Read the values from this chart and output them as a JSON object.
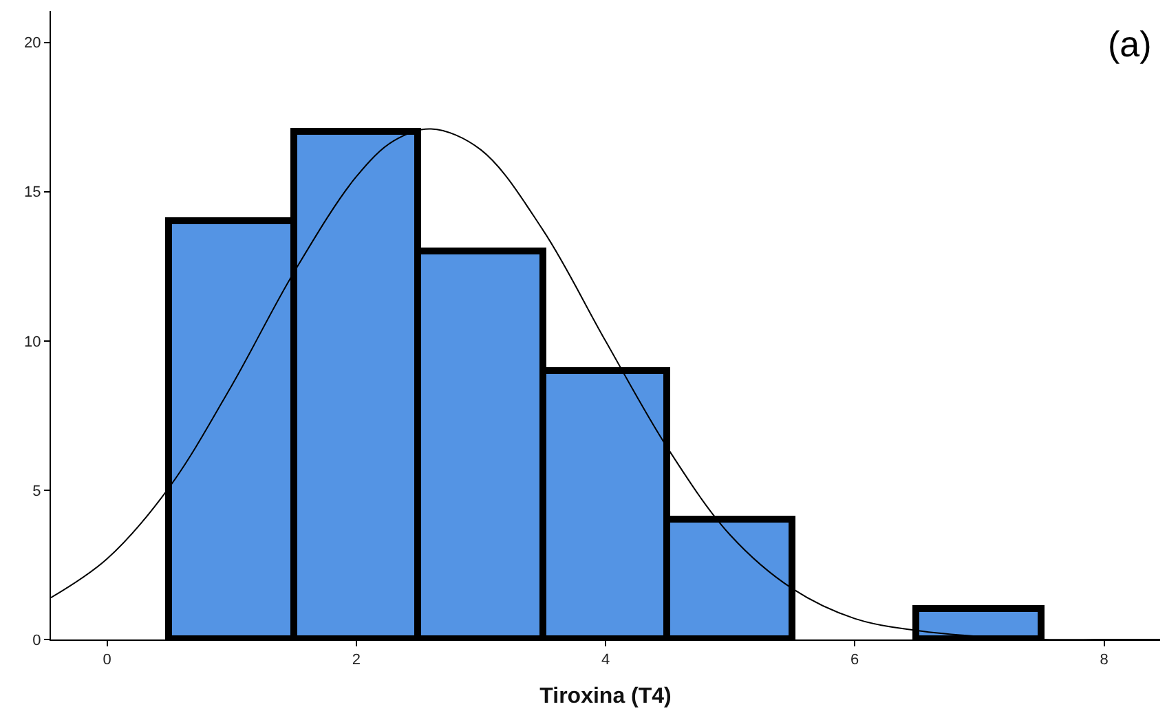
{
  "chart_data": {
    "type": "histogram",
    "xlabel": "Tiroxina (T4)",
    "annotations": [
      "(a)"
    ],
    "bins": [
      0.5,
      1.5,
      2.5,
      3.5,
      4.5,
      5.5,
      6.5,
      7.5
    ],
    "values": [
      14,
      17,
      13,
      9,
      4,
      0,
      1
    ],
    "color": "#5494e4",
    "series": [
      {
        "type": "line",
        "color": "#000000",
        "x": [
          -0.45,
          0,
          0.5,
          1,
          1.5,
          2,
          2.3,
          2.6,
          3,
          3.5,
          4,
          4.5,
          5,
          5.5,
          6,
          6.5,
          7,
          7.5,
          8,
          8.45
        ],
        "values": [
          1.4,
          2.7,
          5.1,
          8.5,
          12.3,
          15.5,
          16.7,
          17.1,
          16.4,
          13.7,
          10.0,
          6.4,
          3.5,
          1.7,
          0.7,
          0.3,
          0.1,
          0.0,
          0.0,
          0.0
        ]
      }
    ],
    "xlim": [
      -0.45,
      8.45
    ],
    "ylim": [
      0,
      21.05
    ],
    "xticks": [
      0,
      2,
      4,
      6,
      8
    ],
    "yticks": [
      0,
      5,
      10,
      15,
      20
    ]
  }
}
